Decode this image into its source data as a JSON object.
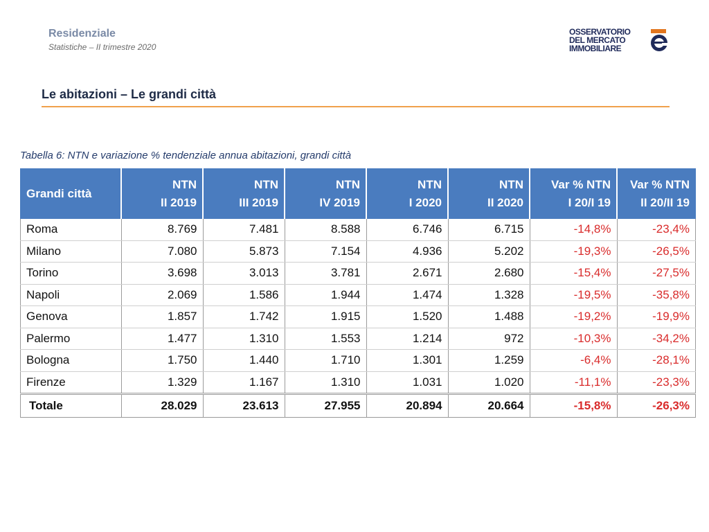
{
  "header": {
    "section": "Residenziale",
    "subtitle": "Statistiche – II trimestre 2020",
    "logo_lines": [
      "OSSERVATORIO",
      "DEL MERCATO",
      "IMMOBILIARE"
    ]
  },
  "page_title": "Le abitazioni – Le grandi città",
  "caption": "Tabella 6: NTN e variazione % tendenziale annua abitazioni, grandi città",
  "colors": {
    "header_bg": "#4a7cbf",
    "negative": "#d92b2b",
    "rule": "#f0a04b"
  },
  "table": {
    "headers": [
      {
        "line1": "Grandi città",
        "line2": ""
      },
      {
        "line1": "NTN",
        "line2": "II 2019"
      },
      {
        "line1": "NTN",
        "line2": "III 2019"
      },
      {
        "line1": "NTN",
        "line2": "IV 2019"
      },
      {
        "line1": "NTN",
        "line2": "I 2020"
      },
      {
        "line1": "NTN",
        "line2": "II 2020"
      },
      {
        "line1": "Var % NTN",
        "line2": "I 20/I 19"
      },
      {
        "line1": "Var % NTN",
        "line2": "II 20/II 19"
      }
    ],
    "rows": [
      [
        "Roma",
        "8.769",
        "7.481",
        "8.588",
        "6.746",
        "6.715",
        "-14,8%",
        "-23,4%"
      ],
      [
        "Milano",
        "7.080",
        "5.873",
        "7.154",
        "4.936",
        "5.202",
        "-19,3%",
        "-26,5%"
      ],
      [
        "Torino",
        "3.698",
        "3.013",
        "3.781",
        "2.671",
        "2.680",
        "-15,4%",
        "-27,5%"
      ],
      [
        "Napoli",
        "2.069",
        "1.586",
        "1.944",
        "1.474",
        "1.328",
        "-19,5%",
        "-35,8%"
      ],
      [
        "Genova",
        "1.857",
        "1.742",
        "1.915",
        "1.520",
        "1.488",
        "-19,2%",
        "-19,9%"
      ],
      [
        "Palermo",
        "1.477",
        "1.310",
        "1.553",
        "1.214",
        "972",
        "-10,3%",
        "-34,2%"
      ],
      [
        "Bologna",
        "1.750",
        "1.440",
        "1.710",
        "1.301",
        "1.259",
        "-6,4%",
        "-28,1%"
      ],
      [
        "Firenze",
        "1.329",
        "1.167",
        "1.310",
        "1.031",
        "1.020",
        "-11,1%",
        "-23,3%"
      ]
    ],
    "total": [
      "Totale",
      "28.029",
      "23.613",
      "27.955",
      "20.894",
      "20.664",
      "-15,8%",
      "-26,3%"
    ]
  }
}
